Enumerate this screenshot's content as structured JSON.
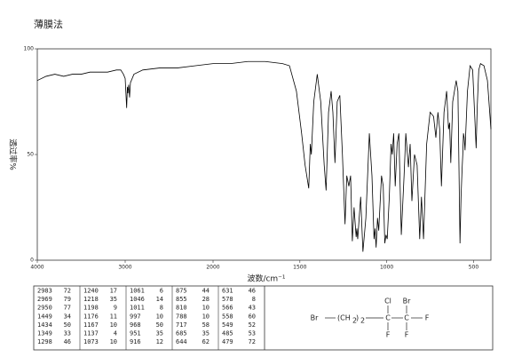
{
  "chart_data": {
    "type": "line",
    "title": "薄膜法",
    "xlabel": "波数/cm⁻¹",
    "ylabel": "透过率%",
    "color": "#000000",
    "xlim": [
      4000,
      400
    ],
    "x_scale_change": 2000,
    "ylim": [
      0,
      100
    ],
    "xticks": [
      4000,
      3000,
      2000,
      1500,
      1000,
      500
    ],
    "yticks": [
      0,
      50,
      100
    ],
    "x": [
      4000,
      3900,
      3800,
      3700,
      3600,
      3500,
      3400,
      3300,
      3200,
      3100,
      3050,
      3020,
      3000,
      2983,
      2975,
      2969,
      2960,
      2950,
      2940,
      2900,
      2800,
      2600,
      2400,
      2200,
      2000,
      1900,
      1800,
      1700,
      1600,
      1560,
      1520,
      1490,
      1470,
      1449,
      1440,
      1434,
      1420,
      1400,
      1380,
      1360,
      1349,
      1335,
      1320,
      1310,
      1298,
      1285,
      1270,
      1255,
      1240,
      1230,
      1218,
      1208,
      1198,
      1188,
      1176,
      1172,
      1167,
      1150,
      1137,
      1120,
      1100,
      1085,
      1073,
      1067,
      1061,
      1053,
      1046,
      1030,
      1020,
      1011,
      1004,
      997,
      985,
      975,
      968,
      960,
      951,
      940,
      930,
      916,
      900,
      890,
      875,
      865,
      855,
      840,
      825,
      810,
      800,
      788,
      770,
      750,
      730,
      717,
      705,
      695,
      685,
      670,
      655,
      644,
      638,
      631,
      620,
      600,
      590,
      578,
      572,
      566,
      562,
      558,
      554,
      549,
      535,
      520,
      505,
      485,
      479,
      470,
      460,
      440,
      420,
      400
    ],
    "values": [
      85,
      87,
      88,
      87,
      88,
      88,
      89,
      89,
      89,
      90,
      90,
      88,
      86,
      72,
      82,
      79,
      83,
      77,
      84,
      88,
      90,
      91,
      91,
      92,
      93,
      93,
      94,
      94,
      93,
      92,
      80,
      60,
      45,
      34,
      55,
      50,
      75,
      88,
      75,
      45,
      33,
      70,
      80,
      70,
      46,
      75,
      78,
      50,
      17,
      40,
      35,
      40,
      9,
      25,
      11,
      15,
      10,
      30,
      4,
      20,
      60,
      40,
      10,
      15,
      6,
      20,
      14,
      40,
      35,
      8,
      12,
      10,
      30,
      55,
      50,
      60,
      35,
      55,
      60,
      12,
      40,
      60,
      44,
      55,
      28,
      50,
      45,
      10,
      30,
      10,
      55,
      70,
      68,
      58,
      70,
      62,
      35,
      70,
      80,
      62,
      65,
      46,
      75,
      85,
      80,
      8,
      30,
      43,
      50,
      60,
      58,
      52,
      80,
      92,
      90,
      53,
      72,
      90,
      93,
      92,
      85,
      62
    ],
    "peaks": {
      "wavenumber": [
        2983,
        2969,
        2950,
        1449,
        1434,
        1349,
        1298,
        1240,
        1218,
        1198,
        1176,
        1167,
        1137,
        1073,
        1061,
        1046,
        1011,
        997,
        968,
        951,
        916,
        875,
        855,
        810,
        788,
        717,
        685,
        644,
        631,
        578,
        566,
        558,
        549,
        485,
        479
      ],
      "transmittance": [
        72,
        79,
        77,
        34,
        50,
        33,
        46,
        17,
        35,
        9,
        11,
        10,
        4,
        10,
        6,
        14,
        8,
        10,
        50,
        35,
        12,
        44,
        28,
        10,
        10,
        58,
        35,
        62,
        46,
        8,
        43,
        60,
        52,
        53,
        72
      ]
    },
    "structure": {
      "left": "Br",
      "chain": "(CH",
      "sub1": "2",
      "close": ")",
      "sub2": "2",
      "c1": "C",
      "c2": "C",
      "c1_top": "Cl",
      "c2_top": "Br",
      "c1_bottom": "F",
      "c2_bottom": "F",
      "right": "F"
    }
  }
}
